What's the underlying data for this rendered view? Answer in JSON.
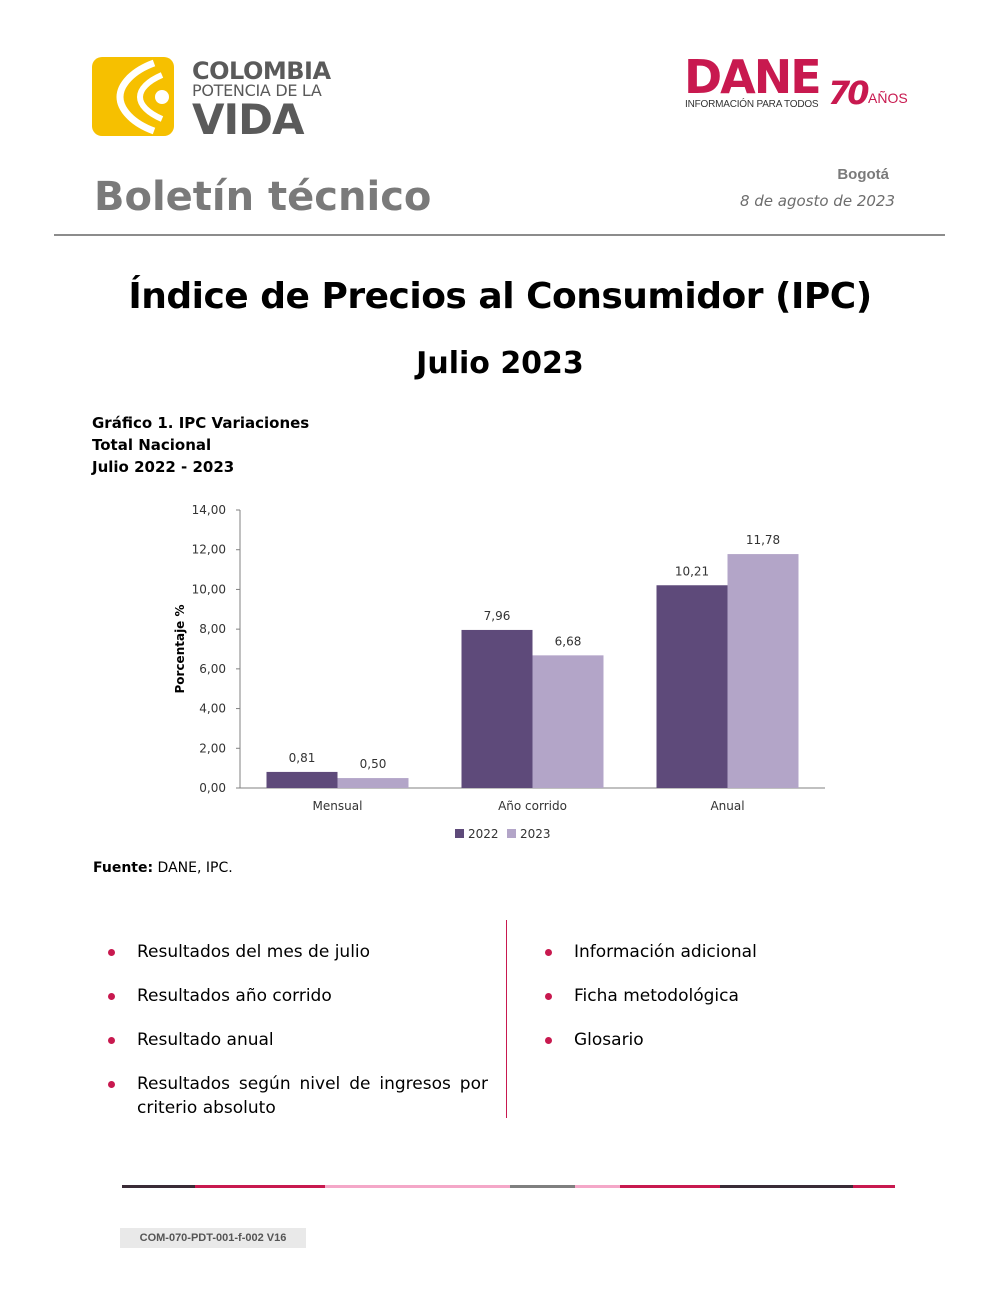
{
  "header": {
    "brand_left": {
      "line1": "COLOMBIA",
      "line2": "POTENCIA DE LA",
      "line3": "VIDA"
    },
    "brand_right": {
      "name": "DANE",
      "tagline": "INFORMACIÓN PARA TODOS",
      "anniv_number": "70",
      "anniv_word": "AÑOS"
    },
    "doc_type": "Boletín técnico",
    "city": "Bogotá",
    "date": "8 de agosto de 2023"
  },
  "title": "Índice de Precios al Consumidor (IPC)",
  "subtitle": "Julio 2023",
  "figure": {
    "caption_lines": [
      "Gráfico 1. IPC Variaciones",
      "Total Nacional",
      "Julio 2022 - 2023"
    ],
    "source_label": "Fuente:",
    "source_text": " DANE, IPC."
  },
  "chart_data": {
    "type": "bar",
    "categories": [
      "Mensual",
      "Año corrido",
      "Anual"
    ],
    "series": [
      {
        "name": "2022",
        "values": [
          0.81,
          7.96,
          10.21
        ],
        "labels": [
          "0,81",
          "7,96",
          "10,21"
        ],
        "color": "#5e4a7a"
      },
      {
        "name": "2023",
        "values": [
          0.5,
          6.68,
          11.78
        ],
        "labels": [
          "0,50",
          "6,68",
          "11,78"
        ],
        "color": "#b3a5c8"
      }
    ],
    "ylabel": "Porcentaje %",
    "ylim": [
      0,
      14
    ],
    "yticks": [
      0,
      2,
      4,
      6,
      8,
      10,
      12,
      14
    ],
    "ytick_labels": [
      "0,00",
      "2,00",
      "4,00",
      "6,00",
      "8,00",
      "10,00",
      "12,00",
      "14,00"
    ],
    "grid": false,
    "legend_position": "bottom"
  },
  "contents_left": [
    "Resultados del mes de julio",
    "Resultados año corrido",
    "Resultado anual",
    "Resultados según nivel de ingresos por criterio absoluto"
  ],
  "contents_right": [
    "Información adicional",
    "Ficha metodológica",
    "Glosario"
  ],
  "colors": {
    "accent": "#c8194f",
    "brand_yellow": "#f6c000",
    "gray_text": "#7a7a7a",
    "footer_segments": [
      "#3a2b36",
      "#c8194f",
      "#f4a7c8",
      "#7f7f7f",
      "#f4a7c8",
      "#c8194f",
      "#3a2b36",
      "#c8194f"
    ]
  },
  "footer": {
    "code": "COM-070-PDT-001-f-002 V16"
  }
}
